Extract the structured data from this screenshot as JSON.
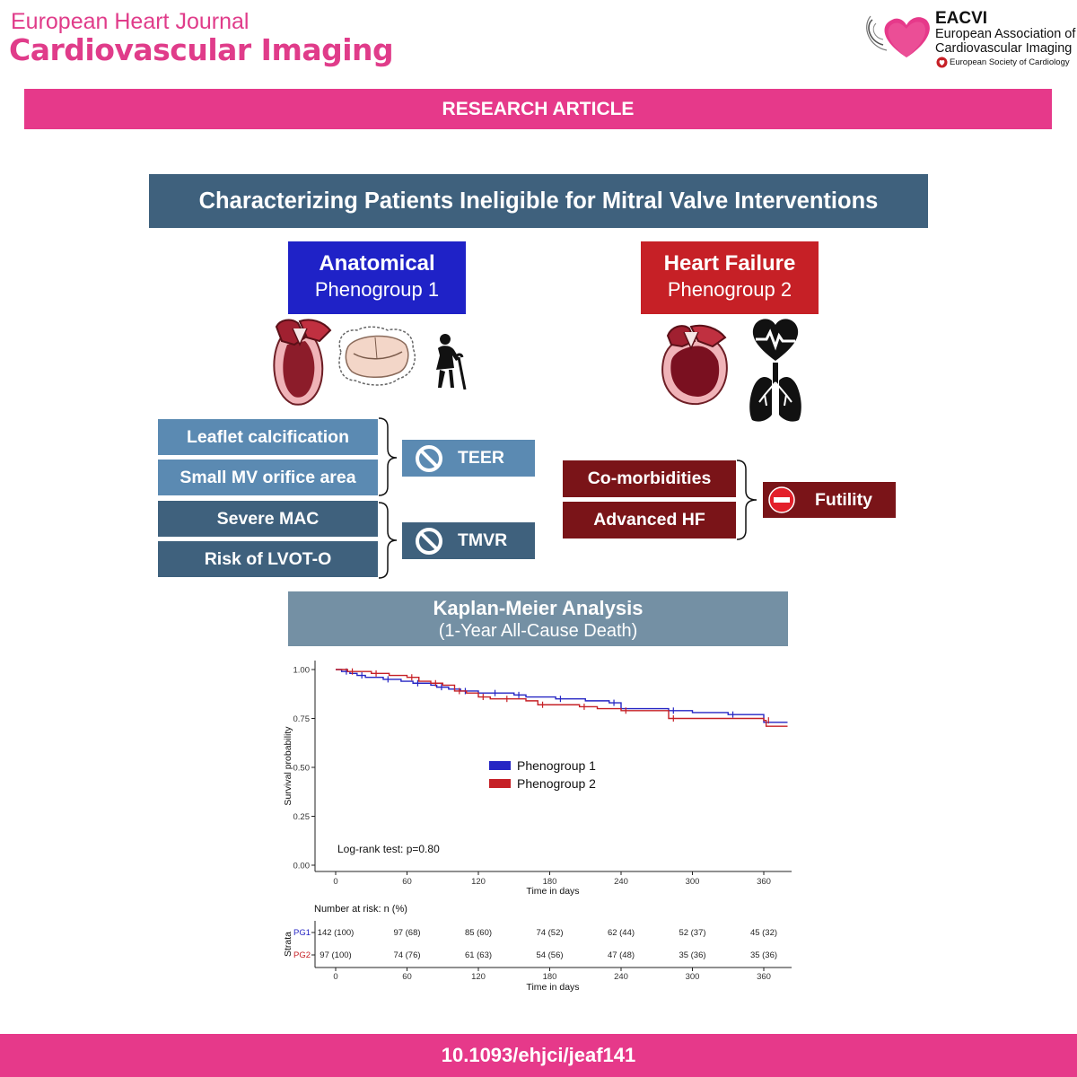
{
  "header": {
    "journal_top": "European Heart Journal",
    "journal_main": "Cardiovascular Imaging",
    "eacvi_title": "EACVI",
    "eacvi_line1": "European Association of",
    "eacvi_line2": "Cardiovascular Imaging",
    "esc": "European Society of Cardiology"
  },
  "banner": "RESEARCH ARTICLE",
  "main_title": "Characterizing Patients Ineligible for Mitral Valve Interventions",
  "phenogroups": {
    "pg1": {
      "title": "Anatomical",
      "subtitle": "Phenogroup 1",
      "color": "#1f22c7"
    },
    "pg2": {
      "title": "Heart Failure",
      "subtitle": "Phenogroup 2",
      "color": "#c62026"
    }
  },
  "pg1_factors": [
    "Leaflet calcification",
    "Small MV orifice area",
    "Severe MAC",
    "Risk of LVOT-O"
  ],
  "pg1_outcomes": [
    "TEER",
    "TMVR"
  ],
  "pg2_factors": [
    "Co-morbidities",
    "Advanced HF"
  ],
  "pg2_outcome": "Futility",
  "km": {
    "title": "Kaplan-Meier Analysis",
    "subtitle": "(1-Year All-Cause Death)"
  },
  "chart_data": {
    "type": "line",
    "ylabel": "Survival probability",
    "xlabel": "Time in days",
    "xlim": [
      0,
      380
    ],
    "ylim": [
      0,
      1
    ],
    "x_ticks": [
      0,
      60,
      120,
      180,
      240,
      300,
      360
    ],
    "y_ticks": [
      "0.00",
      "0.25",
      "0.50",
      "0.75",
      "1.00"
    ],
    "legend_position": "center",
    "annotation": "Log-rank test: p=0.80",
    "series": [
      {
        "name": "Phenogroup 1",
        "color": "#2626c4",
        "x": [
          0,
          5,
          12,
          18,
          25,
          40,
          55,
          65,
          80,
          85,
          95,
          105,
          120,
          130,
          140,
          150,
          160,
          185,
          210,
          230,
          240,
          280,
          300,
          330,
          360,
          380
        ],
        "y": [
          1.0,
          0.99,
          0.98,
          0.97,
          0.96,
          0.95,
          0.94,
          0.93,
          0.92,
          0.91,
          0.9,
          0.89,
          0.88,
          0.88,
          0.88,
          0.87,
          0.86,
          0.85,
          0.84,
          0.83,
          0.8,
          0.79,
          0.78,
          0.77,
          0.73,
          0.73
        ]
      },
      {
        "name": "Phenogroup 2",
        "color": "#c62026",
        "x": [
          0,
          10,
          20,
          30,
          45,
          60,
          70,
          80,
          90,
          100,
          110,
          120,
          130,
          140,
          160,
          170,
          185,
          205,
          220,
          240,
          275,
          280,
          320,
          360,
          362,
          380
        ],
        "y": [
          1.0,
          0.99,
          0.99,
          0.98,
          0.97,
          0.96,
          0.94,
          0.93,
          0.92,
          0.89,
          0.88,
          0.86,
          0.85,
          0.85,
          0.84,
          0.82,
          0.82,
          0.81,
          0.8,
          0.79,
          0.79,
          0.75,
          0.75,
          0.74,
          0.71,
          0.71
        ]
      }
    ],
    "risk_table": {
      "title": "Number at risk: n (%)",
      "strata_label": "Strata",
      "xlabel": "Time in days",
      "rows": [
        {
          "label": "PG1",
          "color": "#2626c4",
          "values": [
            "142 (100)",
            "97 (68)",
            "85 (60)",
            "74 (52)",
            "62 (44)",
            "52 (37)",
            "45 (32)"
          ]
        },
        {
          "label": "PG2",
          "color": "#c62026",
          "values": [
            "97 (100)",
            "74 (76)",
            "61 (63)",
            "54 (56)",
            "47 (48)",
            "35 (36)",
            "35 (36)"
          ]
        }
      ]
    }
  },
  "footer": "10.1093/ehjci/jeaf141"
}
